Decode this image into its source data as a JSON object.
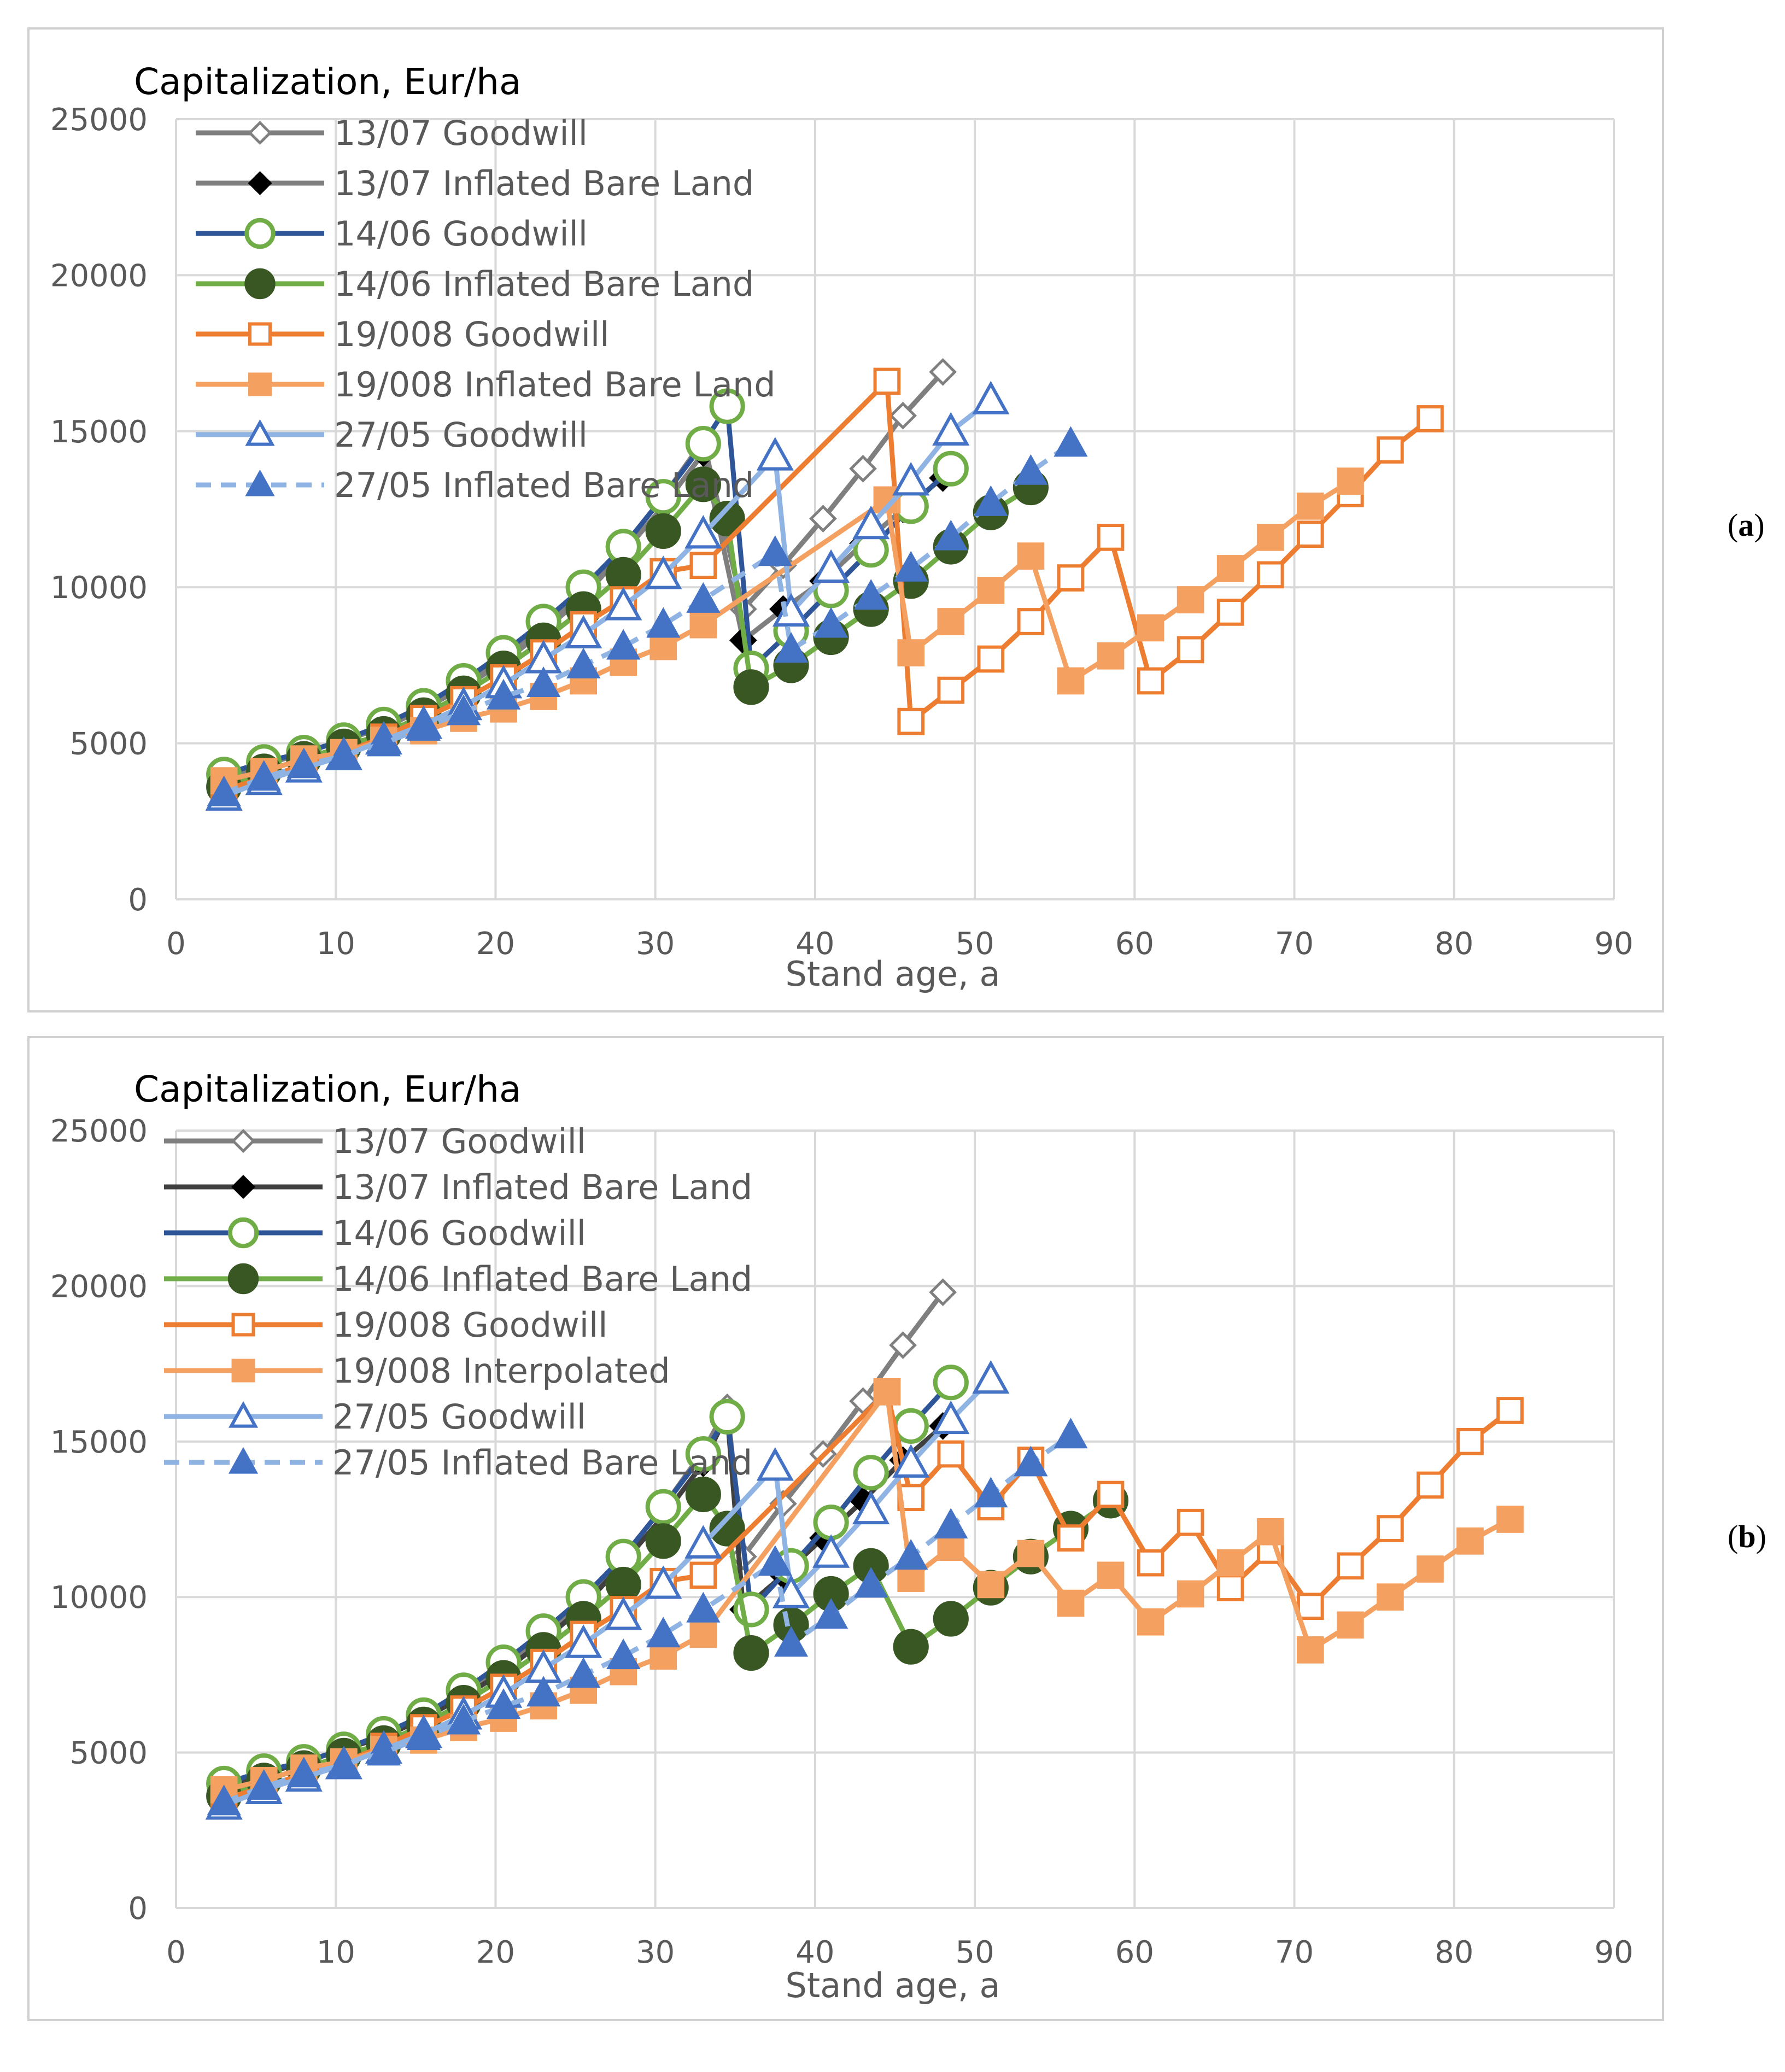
{
  "panels": [
    {
      "label": "a"
    },
    {
      "label": "b"
    }
  ],
  "colors": {
    "s1307": "#7f7f7f",
    "s1307_dark": "#404040",
    "s1406": "#2e5597",
    "s1406_green": "#70ad47",
    "s1406_fill": "#385723",
    "s19008": "#ed7d31",
    "s19008_fill": "#f4a061",
    "s2705": "#4472c4",
    "s2705_line": "#8fb4e3",
    "grid": "#d9d9d9",
    "axis_text": "#595959"
  },
  "chart_data": [
    {
      "type": "line",
      "panel": "a",
      "title": "Capitalization, Eur/ha",
      "xlabel": "Stand age, a",
      "ylabel": "",
      "xlim": [
        0,
        90
      ],
      "ylim": [
        0,
        25000
      ],
      "xticks": [
        0,
        10,
        20,
        30,
        40,
        50,
        60,
        70,
        80,
        90
      ],
      "yticks": [
        0,
        5000,
        10000,
        15000,
        20000,
        25000
      ],
      "grid": true,
      "legend_position": "top-left",
      "series": [
        {
          "key": "g1307",
          "name": "13/07 Goodwill",
          "line": "#7f7f7f",
          "dash": false,
          "marker": "diamond",
          "mfill": "#ffffff",
          "mstroke": "#7f7f7f",
          "x": [
            3,
            5.5,
            8,
            10.5,
            13,
            15.5,
            18,
            20.5,
            23,
            25.5,
            28,
            30.5,
            33,
            35.5,
            38,
            40.5,
            43,
            45.5,
            48
          ],
          "y": [
            3900,
            4400,
            4700,
            5100,
            5600,
            6200,
            6900,
            7800,
            8800,
            9900,
            11300,
            12900,
            14700,
            9300,
            10700,
            12200,
            13800,
            15500,
            16900
          ]
        },
        {
          "key": "ib1307",
          "name": "13/07 Inflated Bare Land",
          "line": "#7f7f7f",
          "dash": false,
          "marker": "diamond",
          "mfill": "#000000",
          "mstroke": "#000000",
          "x": [
            3,
            5.5,
            8,
            10.5,
            13,
            15.5,
            18,
            20.5,
            23,
            25.5,
            28,
            30.5,
            33,
            35.5,
            38,
            40.5,
            43,
            45.5,
            48
          ],
          "y": [
            3900,
            4300,
            4700,
            5100,
            5500,
            6100,
            6800,
            7600,
            8600,
            9700,
            11100,
            12600,
            14300,
            8300,
            9300,
            10200,
            11400,
            12500,
            13500
          ]
        },
        {
          "key": "g1406",
          "name": "14/06 Goodwill",
          "line": "#2e5597",
          "dash": false,
          "marker": "circle",
          "mfill": "#ffffff",
          "mstroke": "#70ad47",
          "x": [
            3,
            5.5,
            8,
            10.5,
            13,
            15.5,
            18,
            20.5,
            23,
            25.5,
            28,
            30.5,
            33,
            34.5,
            36,
            38.5,
            41,
            43.5,
            46,
            48.5
          ],
          "y": [
            4000,
            4400,
            4700,
            5100,
            5600,
            6200,
            7000,
            7900,
            8900,
            10000,
            11300,
            12900,
            14600,
            15800,
            7400,
            8600,
            9900,
            11200,
            12600,
            13800
          ]
        },
        {
          "key": "ib1406",
          "name": "14/06 Inflated Bare Land",
          "line": "#70ad47",
          "dash": false,
          "marker": "circle",
          "mfill": "#385723",
          "mstroke": "#385723",
          "x": [
            3,
            5.5,
            8,
            10.5,
            13,
            15.5,
            18,
            20.5,
            23,
            25.5,
            28,
            30.5,
            33,
            34.5,
            36,
            38.5,
            41,
            43.5,
            46,
            48.5,
            51,
            53.5
          ],
          "y": [
            3600,
            4100,
            4500,
            4900,
            5300,
            5900,
            6600,
            7400,
            8300,
            9300,
            10400,
            11800,
            13300,
            12200,
            6800,
            7500,
            8400,
            9300,
            10200,
            11300,
            12400,
            13200
          ]
        },
        {
          "key": "g19008",
          "name": "19/008 Goodwill",
          "line": "#ed7d31",
          "dash": false,
          "marker": "square",
          "mfill": "#ffffff",
          "mstroke": "#ed7d31",
          "x": [
            3,
            5.5,
            8,
            10.5,
            13,
            15.5,
            18,
            20.5,
            23,
            25.5,
            28,
            30.5,
            33,
            44.5,
            46,
            48.5,
            51,
            53.5,
            56,
            58.5,
            61,
            63.5,
            66,
            68.5,
            71,
            73.5,
            76,
            78.5
          ],
          "y": [
            3500,
            3900,
            4300,
            4700,
            5200,
            5800,
            6400,
            7100,
            7900,
            8800,
            9600,
            10500,
            10700,
            16600,
            5700,
            6700,
            7700,
            8900,
            10300,
            11600,
            7000,
            8000,
            9200,
            10400,
            11700,
            13000,
            14400,
            15400
          ]
        },
        {
          "key": "ib19008",
          "name": "19/008 Inflated Bare Land",
          "line": "#f4a061",
          "dash": false,
          "marker": "square",
          "mfill": "#f4a061",
          "mstroke": "#f4a061",
          "x": [
            3,
            5.5,
            8,
            10.5,
            13,
            15.5,
            18,
            20.5,
            23,
            25.5,
            28,
            30.5,
            33,
            44.5,
            46,
            48.5,
            51,
            53.5,
            56,
            58.5,
            61,
            63.5,
            66,
            68.5,
            71,
            73.5
          ],
          "y": [
            3800,
            4100,
            4500,
            4700,
            5100,
            5400,
            5800,
            6100,
            6500,
            7000,
            7600,
            8100,
            8800,
            12800,
            7900,
            8900,
            9900,
            11000,
            7000,
            7800,
            8700,
            9600,
            10600,
            11600,
            12600,
            13400
          ]
        },
        {
          "key": "g2705",
          "name": "27/05 Goodwill",
          "line": "#8fb4e3",
          "dash": false,
          "marker": "triangle",
          "mfill": "#ffffff",
          "mstroke": "#4472c4",
          "x": [
            3,
            5.5,
            8,
            10.5,
            13,
            15.5,
            18,
            20.5,
            23,
            25.5,
            28,
            30.5,
            33,
            37.5,
            38.5,
            41,
            43.5,
            46,
            48.5,
            51
          ],
          "y": [
            3300,
            3800,
            4200,
            4600,
            5100,
            5600,
            6200,
            6900,
            7700,
            8500,
            9400,
            10400,
            11700,
            14200,
            9200,
            10600,
            12000,
            13400,
            15000,
            16000
          ]
        },
        {
          "key": "ib2705",
          "name": "27/05 Inflated Bare Land",
          "line": "#8fb4e3",
          "dash": true,
          "marker": "triangle",
          "mfill": "#4472c4",
          "mstroke": "#4472c4",
          "x": [
            3,
            5.5,
            8,
            10.5,
            13,
            15.5,
            18,
            20.5,
            23,
            25.5,
            28,
            30.5,
            33,
            37.5,
            38.5,
            41,
            43.5,
            46,
            48.5,
            51,
            53.5,
            56
          ],
          "y": [
            3400,
            3900,
            4300,
            4600,
            5000,
            5500,
            6000,
            6500,
            6900,
            7500,
            8100,
            8800,
            9600,
            11100,
            8000,
            8800,
            9700,
            10600,
            11600,
            12700,
            13700,
            14600
          ]
        }
      ]
    },
    {
      "type": "line",
      "panel": "b",
      "title": "Capitalization, Eur/ha",
      "xlabel": "Stand age, a",
      "ylabel": "",
      "xlim": [
        0,
        90
      ],
      "ylim": [
        0,
        25000
      ],
      "xticks": [
        0,
        10,
        20,
        30,
        40,
        50,
        60,
        70,
        80,
        90
      ],
      "yticks": [
        0,
        5000,
        10000,
        15000,
        20000,
        25000
      ],
      "grid": true,
      "legend_position": "top-left",
      "series": [
        {
          "key": "g1307",
          "name": "13/07 Goodwill",
          "line": "#7f7f7f",
          "dash": false,
          "marker": "diamond",
          "mfill": "#ffffff",
          "mstroke": "#7f7f7f",
          "x": [
            3,
            5.5,
            8,
            10.5,
            13,
            15.5,
            18,
            20.5,
            23,
            25.5,
            28,
            30.5,
            33,
            34.5,
            35.5,
            38,
            40.5,
            43,
            45.5,
            48
          ],
          "y": [
            3900,
            4400,
            4700,
            5100,
            5600,
            6200,
            6900,
            7800,
            8800,
            9900,
            11300,
            12900,
            14700,
            16100,
            11300,
            13000,
            14600,
            16300,
            18100,
            19800
          ]
        },
        {
          "key": "ib1307",
          "name": "13/07 Inflated Bare Land",
          "line": "#404040",
          "dash": false,
          "marker": "diamond",
          "mfill": "#000000",
          "mstroke": "#000000",
          "x": [
            3,
            5.5,
            8,
            10.5,
            13,
            15.5,
            18,
            20.5,
            23,
            25.5,
            28,
            30.5,
            33,
            34.5,
            35.5,
            38,
            40.5,
            43,
            45.5,
            48
          ],
          "y": [
            3900,
            4300,
            4700,
            5100,
            5500,
            6100,
            6800,
            7600,
            8600,
            9700,
            11100,
            12600,
            14300,
            15900,
            9600,
            10700,
            11900,
            13100,
            14400,
            15500
          ]
        },
        {
          "key": "g1406",
          "name": "14/06 Goodwill",
          "line": "#2e5597",
          "dash": false,
          "marker": "circle",
          "mfill": "#ffffff",
          "mstroke": "#70ad47",
          "x": [
            3,
            5.5,
            8,
            10.5,
            13,
            15.5,
            18,
            20.5,
            23,
            25.5,
            28,
            30.5,
            33,
            34.5,
            36,
            38.5,
            41,
            43.5,
            46,
            48.5
          ],
          "y": [
            4000,
            4400,
            4700,
            5100,
            5600,
            6200,
            7000,
            7900,
            8900,
            10000,
            11300,
            12900,
            14600,
            15800,
            9600,
            11000,
            12400,
            14000,
            15500,
            16900
          ]
        },
        {
          "key": "ib1406",
          "name": "14/06 Inflated Bare Land",
          "line": "#70ad47",
          "dash": false,
          "marker": "circle",
          "mfill": "#385723",
          "mstroke": "#385723",
          "x": [
            3,
            5.5,
            8,
            10.5,
            13,
            15.5,
            18,
            20.5,
            23,
            25.5,
            28,
            30.5,
            33,
            34.5,
            36,
            38.5,
            41,
            43.5,
            46,
            48.5,
            51,
            53.5,
            56,
            58.5
          ],
          "y": [
            3600,
            4100,
            4500,
            4900,
            5300,
            5900,
            6600,
            7400,
            8300,
            9300,
            10400,
            11800,
            13300,
            12200,
            8200,
            9100,
            10100,
            11000,
            8400,
            9300,
            10300,
            11300,
            12200,
            13100
          ]
        },
        {
          "key": "g19008",
          "name": "19/008 Goodwill",
          "line": "#ed7d31",
          "dash": false,
          "marker": "square",
          "mfill": "#ffffff",
          "mstroke": "#ed7d31",
          "x": [
            3,
            5.5,
            8,
            10.5,
            13,
            15.5,
            18,
            20.5,
            23,
            25.5,
            28,
            30.5,
            33,
            44.5,
            46,
            48.5,
            51,
            53.5,
            56,
            58.5,
            61,
            63.5,
            66,
            68.5,
            71,
            73.5,
            76,
            78.5,
            81,
            83.5
          ],
          "y": [
            3500,
            3900,
            4300,
            4700,
            5200,
            5800,
            6400,
            7100,
            7900,
            8800,
            9600,
            10500,
            10700,
            16600,
            13200,
            14600,
            12900,
            14400,
            11900,
            13300,
            11100,
            12400,
            10300,
            11500,
            9700,
            11000,
            12200,
            13600,
            15000,
            16000
          ]
        },
        {
          "key": "ip19008",
          "name": "19/008 Interpolated",
          "line": "#f4a061",
          "dash": false,
          "marker": "square",
          "mfill": "#f4a061",
          "mstroke": "#f4a061",
          "x": [
            3,
            5.5,
            8,
            10.5,
            13,
            15.5,
            18,
            20.5,
            23,
            25.5,
            28,
            30.5,
            33,
            44.5,
            46,
            48.5,
            51,
            53.5,
            56,
            58.5,
            61,
            63.5,
            66,
            68.5,
            71,
            73.5,
            76,
            78.5,
            81,
            83.5
          ],
          "y": [
            3800,
            4100,
            4500,
            4700,
            5100,
            5400,
            5800,
            6100,
            6500,
            7000,
            7600,
            8100,
            8800,
            16600,
            10600,
            11600,
            10400,
            11400,
            9800,
            10700,
            9200,
            10100,
            11100,
            12100,
            8300,
            9100,
            10000,
            10900,
            11800,
            12500
          ]
        },
        {
          "key": "g2705",
          "name": "27/05 Goodwill",
          "line": "#8fb4e3",
          "dash": false,
          "marker": "triangle",
          "mfill": "#ffffff",
          "mstroke": "#4472c4",
          "x": [
            3,
            5.5,
            8,
            10.5,
            13,
            15.5,
            18,
            20.5,
            23,
            25.5,
            28,
            30.5,
            33,
            37.5,
            38.5,
            41,
            43.5,
            46,
            48.5,
            51
          ],
          "y": [
            3300,
            3800,
            4200,
            4600,
            5100,
            5600,
            6200,
            6900,
            7700,
            8500,
            9400,
            10400,
            11700,
            14200,
            10100,
            11400,
            12800,
            14300,
            15700,
            17000
          ]
        },
        {
          "key": "ib2705",
          "name": "27/05 Inflated Bare Land",
          "line": "#8fb4e3",
          "dash": true,
          "marker": "triangle",
          "mfill": "#4472c4",
          "mstroke": "#4472c4",
          "x": [
            3,
            5.5,
            8,
            10.5,
            13,
            15.5,
            18,
            20.5,
            23,
            25.5,
            28,
            30.5,
            33,
            37.5,
            38.5,
            41,
            43.5,
            46,
            48.5,
            51,
            53.5,
            56
          ],
          "y": [
            3400,
            3900,
            4300,
            4600,
            5000,
            5500,
            6000,
            6500,
            6900,
            7500,
            8100,
            8800,
            9600,
            11100,
            8500,
            9400,
            10400,
            11300,
            12300,
            13300,
            14300,
            15200
          ]
        }
      ]
    }
  ]
}
